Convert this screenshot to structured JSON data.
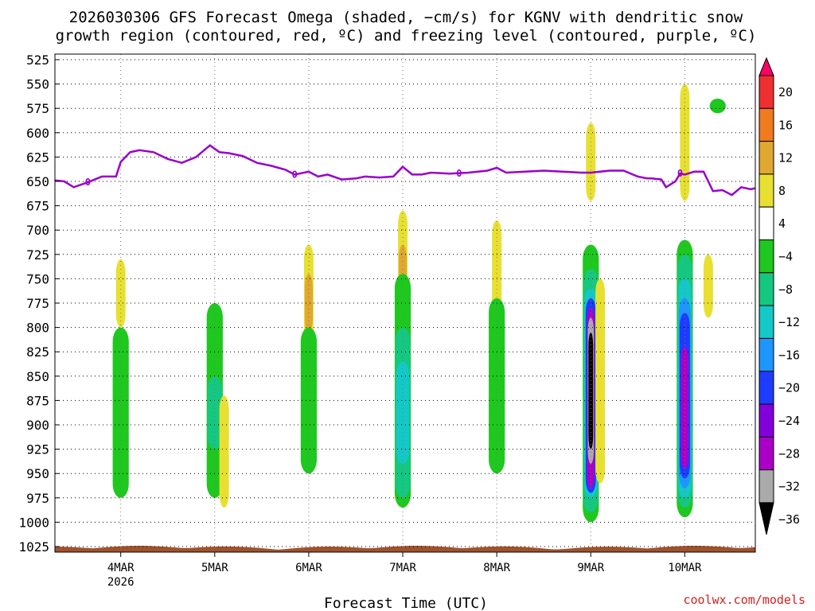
{
  "chart_data": {
    "type": "heatmap",
    "title_line1": "2026030306 GFS Forecast Omega (shaded, −cm/s) for KGNV with dendritic snow",
    "title_line2": "growth region (contoured, red, ºC) and freezing level (contoured, purple, ºC)",
    "xlabel": "Forecast Time (UTC)",
    "credit": "coolwx.com/models",
    "x_range_days": [
      3.3,
      10.75
    ],
    "x_ticks": [
      {
        "day": 4,
        "label": "4MAR",
        "sub": "2026"
      },
      {
        "day": 5,
        "label": "5MAR",
        "sub": ""
      },
      {
        "day": 6,
        "label": "6MAR",
        "sub": ""
      },
      {
        "day": 7,
        "label": "7MAR",
        "sub": ""
      },
      {
        "day": 8,
        "label": "8MAR",
        "sub": ""
      },
      {
        "day": 9,
        "label": "9MAR",
        "sub": ""
      },
      {
        "day": 10,
        "label": "10MAR",
        "sub": ""
      }
    ],
    "y_ticks_hpa": [
      "525",
      "550",
      "575",
      "600",
      "625",
      "650",
      "675",
      "700",
      "725",
      "750",
      "775",
      "800",
      "825",
      "850",
      "875",
      "900",
      "925",
      "950",
      "975",
      "1000",
      "1025"
    ],
    "colorbar": {
      "labels": [
        "20",
        "16",
        "12",
        "8",
        "4",
        "−4",
        "−8",
        "−12",
        "−16",
        "−20",
        "−24",
        "−28",
        "−32",
        "−36"
      ],
      "colors": [
        "#ff0066",
        "#f03030",
        "#f07a1e",
        "#e0a830",
        "#e8e030",
        "#ffffff",
        "#1ec81e",
        "#14c882",
        "#14c8c8",
        "#1e96ff",
        "#1e3cff",
        "#8200dc",
        "#aa00c8",
        "#aaaaaa",
        "#000000"
      ]
    },
    "freezing_level": {
      "color": "#9900cc",
      "label": "0",
      "days": [
        3.3,
        3.4,
        3.5,
        3.65,
        3.8,
        3.95,
        4.0,
        4.1,
        4.2,
        4.35,
        4.5,
        4.65,
        4.8,
        4.95,
        5.05,
        5.15,
        5.3,
        5.45,
        5.6,
        5.75,
        5.85,
        6.0,
        6.1,
        6.2,
        6.35,
        6.5,
        6.6,
        6.75,
        6.9,
        7.0,
        7.1,
        7.2,
        7.3,
        7.5,
        7.7,
        7.9,
        8.0,
        8.1,
        8.3,
        8.5,
        8.7,
        8.9,
        9.0,
        9.2,
        9.35,
        9.5,
        9.6,
        9.65,
        9.75,
        9.8,
        9.9,
        9.95,
        10.0,
        10.1,
        10.2,
        10.3,
        10.4,
        10.5,
        10.6,
        10.7,
        10.75
      ],
      "hpa": [
        649,
        650,
        656,
        651,
        645,
        645,
        630,
        620,
        618,
        620,
        627,
        631,
        625,
        613,
        620,
        621,
        624,
        631,
        634,
        638,
        643,
        640,
        645,
        643,
        648,
        647,
        645,
        646,
        645,
        635,
        643,
        643,
        641,
        642,
        641,
        639,
        636,
        641,
        640,
        639,
        640,
        641,
        641,
        639,
        639,
        645,
        647,
        647,
        648,
        656,
        650,
        642,
        643,
        640,
        640,
        660,
        659,
        664,
        656,
        658,
        657
      ]
    },
    "omega_bins_cm_s": [
      {
        "day": 4.0,
        "p_top": 730,
        "p_bot": 800,
        "bin": "4"
      },
      {
        "day": 4.0,
        "p_top": 800,
        "p_bot": 975,
        "bin": "-4"
      },
      {
        "day": 5.0,
        "p_top": 775,
        "p_bot": 975,
        "bin": "-4"
      },
      {
        "day": 5.0,
        "p_top": 850,
        "p_bot": 925,
        "bin": "-8"
      },
      {
        "day": 5.1,
        "p_top": 870,
        "p_bot": 985,
        "bin": "4"
      },
      {
        "day": 6.0,
        "p_top": 715,
        "p_bot": 835,
        "bin": "4"
      },
      {
        "day": 6.0,
        "p_top": 745,
        "p_bot": 805,
        "bin": "8"
      },
      {
        "day": 6.0,
        "p_top": 800,
        "p_bot": 950,
        "bin": "-4"
      },
      {
        "day": 7.0,
        "p_top": 680,
        "p_bot": 825,
        "bin": "4"
      },
      {
        "day": 7.0,
        "p_top": 715,
        "p_bot": 790,
        "bin": "8"
      },
      {
        "day": 7.0,
        "p_top": 745,
        "p_bot": 985,
        "bin": "-4"
      },
      {
        "day": 7.0,
        "p_top": 800,
        "p_bot": 975,
        "bin": "-8"
      },
      {
        "day": 7.0,
        "p_top": 835,
        "p_bot": 940,
        "bin": "-12"
      },
      {
        "day": 8.0,
        "p_top": 690,
        "p_bot": 800,
        "bin": "4"
      },
      {
        "day": 8.0,
        "p_top": 770,
        "p_bot": 950,
        "bin": "-4"
      },
      {
        "day": 9.0,
        "p_top": 590,
        "p_bot": 670,
        "bin": "4"
      },
      {
        "day": 9.0,
        "p_top": 715,
        "p_bot": 1000,
        "bin": "-4"
      },
      {
        "day": 9.0,
        "p_top": 740,
        "p_bot": 990,
        "bin": "-8"
      },
      {
        "day": 9.0,
        "p_top": 760,
        "p_bot": 975,
        "bin": "-12"
      },
      {
        "day": 9.0,
        "p_top": 770,
        "p_bot": 970,
        "bin": "-20"
      },
      {
        "day": 9.0,
        "p_top": 780,
        "p_bot": 965,
        "bin": "-28"
      },
      {
        "day": 9.0,
        "p_top": 790,
        "p_bot": 940,
        "bin": "-32"
      },
      {
        "day": 9.0,
        "p_top": 805,
        "p_bot": 925,
        "bin": "-36"
      },
      {
        "day": 9.1,
        "p_top": 750,
        "p_bot": 960,
        "bin": "4"
      },
      {
        "day": 10.0,
        "p_top": 550,
        "p_bot": 670,
        "bin": "4"
      },
      {
        "day": 10.0,
        "p_top": 710,
        "p_bot": 995,
        "bin": "-4"
      },
      {
        "day": 10.0,
        "p_top": 725,
        "p_bot": 985,
        "bin": "-8"
      },
      {
        "day": 10.0,
        "p_top": 750,
        "p_bot": 975,
        "bin": "-12"
      },
      {
        "day": 10.0,
        "p_top": 770,
        "p_bot": 965,
        "bin": "-16"
      },
      {
        "day": 10.0,
        "p_top": 785,
        "p_bot": 955,
        "bin": "-20"
      },
      {
        "day": 10.0,
        "p_top": 820,
        "p_bot": 945,
        "bin": "-28"
      },
      {
        "day": 10.25,
        "p_top": 725,
        "p_bot": 790,
        "bin": "4"
      },
      {
        "day": 10.35,
        "p_top": 565,
        "p_bot": 580,
        "bin": "-4"
      }
    ]
  }
}
